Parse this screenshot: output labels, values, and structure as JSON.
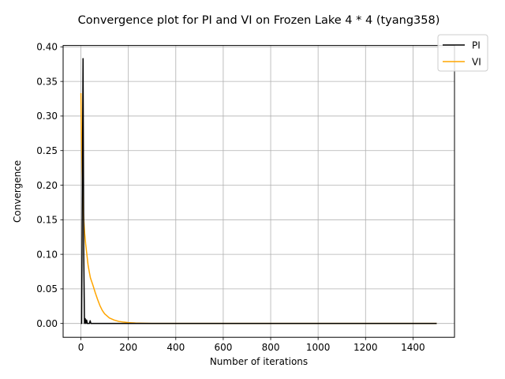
{
  "chart_data": {
    "type": "line",
    "title": "Convergence plot for PI and VI on Frozen Lake 4 * 4 (tyang358)",
    "xlabel": "Number of iterations",
    "ylabel": "Convergence",
    "xlim": [
      -75,
      1575
    ],
    "ylim": [
      -0.02,
      0.402
    ],
    "xticks": [
      0,
      200,
      400,
      600,
      800,
      1000,
      1200,
      1400
    ],
    "xtick_labels": [
      "0",
      "200",
      "400",
      "600",
      "800",
      "1000",
      "1200",
      "1400"
    ],
    "yticks": [
      0.0,
      0.05,
      0.1,
      0.15,
      0.2,
      0.25,
      0.3,
      0.35,
      0.4
    ],
    "ytick_labels": [
      "0.00",
      "0.05",
      "0.10",
      "0.15",
      "0.20",
      "0.25",
      "0.30",
      "0.35",
      "0.40"
    ],
    "grid": true,
    "legend_position": "top-right",
    "series": [
      {
        "name": "PI",
        "color": "#000000",
        "x": [
          0,
          3,
          6,
          9,
          12,
          15,
          18,
          21,
          24,
          27,
          30,
          33,
          36,
          39,
          42,
          45,
          60,
          100,
          200,
          400,
          800,
          1200,
          1500
        ],
        "y": [
          0.0,
          0.0,
          0.2,
          0.383,
          0.1,
          0.0,
          0.007,
          0.0,
          0.005,
          0.0,
          0.0,
          0.0,
          0.0,
          0.004,
          0.0,
          0.0,
          0.0,
          0.0,
          0.0,
          0.0,
          0.0,
          0.0,
          0.0
        ]
      },
      {
        "name": "VI",
        "color": "#ffa500",
        "x": [
          0,
          2,
          5,
          8,
          12,
          16,
          20,
          25,
          30,
          35,
          40,
          50,
          60,
          70,
          80,
          90,
          100,
          120,
          140,
          160,
          180,
          200,
          230,
          260,
          300,
          400,
          600,
          800,
          1000,
          1200,
          1500
        ],
        "y": [
          0.333,
          0.28,
          0.22,
          0.18,
          0.15,
          0.13,
          0.115,
          0.1,
          0.085,
          0.075,
          0.066,
          0.056,
          0.045,
          0.035,
          0.026,
          0.019,
          0.014,
          0.008,
          0.005,
          0.003,
          0.002,
          0.0012,
          0.0006,
          0.0003,
          0.0001,
          0.0,
          0.0,
          0.0,
          0.0,
          0.0,
          0.0
        ]
      }
    ]
  }
}
